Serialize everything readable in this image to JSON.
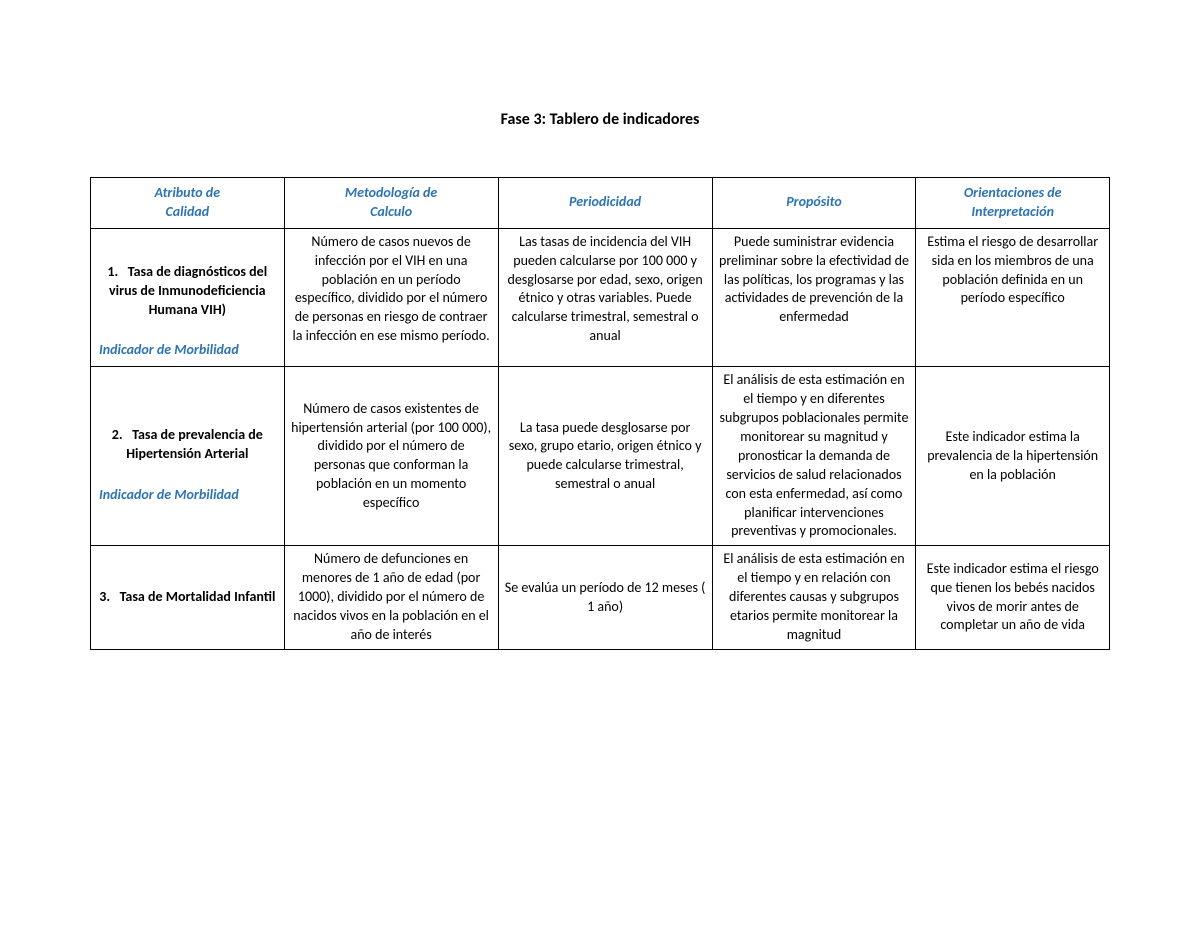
{
  "title": "Fase 3: Tablero de indicadores",
  "headers": {
    "attr_line1": "Atributo de",
    "attr_line2": "Calidad",
    "met_line1": "Metodología de",
    "met_line2": "Calculo",
    "per": "Periodicidad",
    "prop": "Propósito",
    "ori_line1": "Orientaciones de",
    "ori_line2": "Interpretación"
  },
  "rows": [
    {
      "num": "1.",
      "name": "Tasa de diagnósticos del virus de Inmunodeficiencia Humana VIH)",
      "indicator": "Indicador de Morbilidad",
      "met": "Número de casos nuevos de infección por el VIH en una población en un período específico, dividido por el número de personas en riesgo de contraer la infección en ese mismo período.",
      "per": "Las tasas de incidencia del VIH pueden calcularse por 100 000 y desglosarse por edad, sexo, origen étnico y otras variables. Puede calcularse trimestral, semestral o anual",
      "prop": "Puede suministrar evidencia preliminar sobre la efectividad de las políticas, los programas y las actividades de prevención de la enfermedad",
      "ori": "Estima el riesgo de desarrollar sida en los miembros de una población definida en un período específico"
    },
    {
      "num": "2.",
      "name": "Tasa de prevalencia de Hipertensión Arterial",
      "indicator": "Indicador de Morbilidad",
      "met": "Número de casos existentes de hipertensión arterial (por 100 000), dividido por el número de personas que conforman la población en un momento específico",
      "per": "La tasa puede desglosarse por sexo, grupo etario, origen étnico y puede calcularse trimestral, semestral o anual",
      "prop": "El análisis de esta estimación en el tiempo y en diferentes subgrupos poblacionales permite monitorear su magnitud y pronosticar la demanda de servicios de salud relacionados con esta enfermedad, así como planificar intervenciones preventivas y promocionales.",
      "ori": "Este indicador estima la prevalencia de la hipertensión en la población"
    },
    {
      "num": "3.",
      "name": "Tasa de Mortalidad Infantil",
      "indicator": "",
      "met": "Número de defunciones en menores de 1 año de edad (por 1000), dividido por el número de nacidos vivos en la población en el año de interés",
      "per": "Se evalúa un período de 12 meses ( 1 año)",
      "prop": "El análisis de esta estimación en el tiempo y en relación con diferentes causas y subgrupos etarios permite monitorear la magnitud",
      "ori": "Este indicador estima el riesgo que tienen los bebés nacidos vivos de morir antes de completar un año de vida"
    }
  ],
  "styling": {
    "page_bg": "#ffffff",
    "text_color": "#000000",
    "header_color": "#2e74b5",
    "indicator_color": "#2e74b5",
    "border_color": "#000000",
    "title_fontsize": 16,
    "body_fontsize": 14,
    "font_family": "Calibri"
  }
}
